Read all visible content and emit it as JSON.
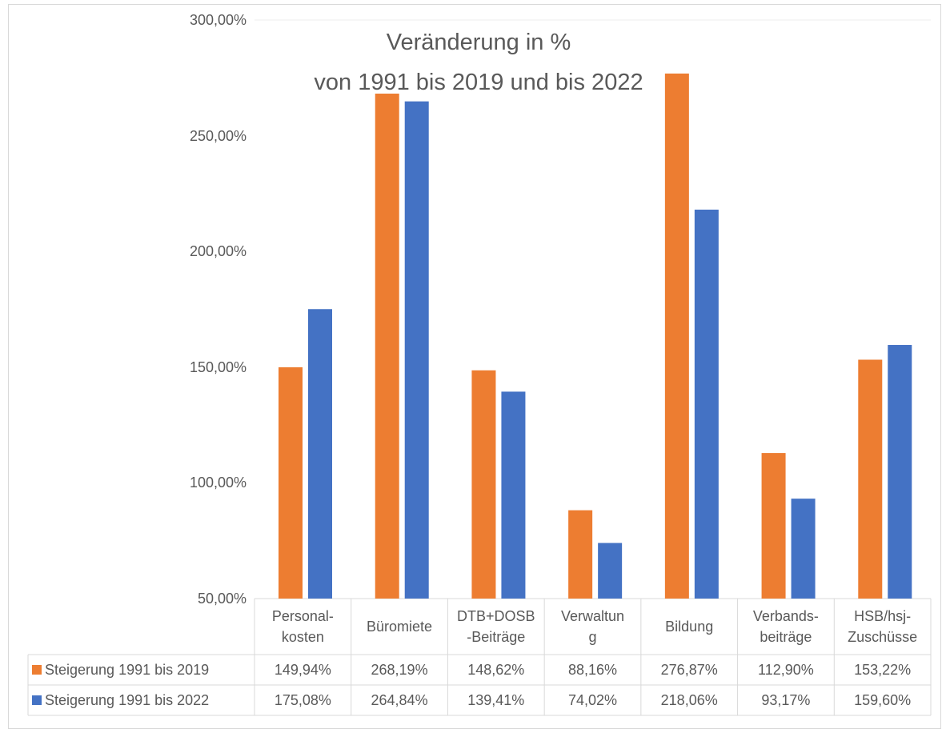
{
  "chart_data": {
    "type": "bar",
    "title": "Veränderung in %\nvon 1991 bis 2019 und bis 2022",
    "categories": [
      "Personal-\nkosten",
      "Büromiete",
      "DTB+DOSB\n-Beiträge",
      "Verwaltun\ng",
      "Bildung",
      "Verbands-\nbeiträge",
      "HSB/hsj-\nZuschüsse"
    ],
    "series": [
      {
        "name": "Steigerung 1991 bis 2019",
        "color": "#ed7d31",
        "values": [
          149.94,
          268.19,
          148.62,
          88.16,
          276.87,
          112.9,
          153.22
        ],
        "value_labels": [
          "149,94%",
          "268,19%",
          "148,62%",
          "88,16%",
          "276,87%",
          "112,90%",
          "153,22%"
        ]
      },
      {
        "name": "Steigerung 1991 bis 2022",
        "color": "#4472c4",
        "values": [
          175.08,
          264.84,
          139.41,
          74.02,
          218.06,
          93.17,
          159.6
        ],
        "value_labels": [
          "175,08%",
          "264,84%",
          "139,41%",
          "74,02%",
          "218,06%",
          "93,17%",
          "159,60%"
        ]
      }
    ],
    "ylim": [
      50,
      300
    ],
    "yticks": [
      {
        "value": 50,
        "label": "50,00%"
      },
      {
        "value": 100,
        "label": "100,00%"
      },
      {
        "value": 150,
        "label": "150,00%"
      },
      {
        "value": 200,
        "label": "200,00%"
      },
      {
        "value": 250,
        "label": "250,00%"
      },
      {
        "value": 300,
        "label": "300,00%"
      }
    ],
    "grid": false
  }
}
